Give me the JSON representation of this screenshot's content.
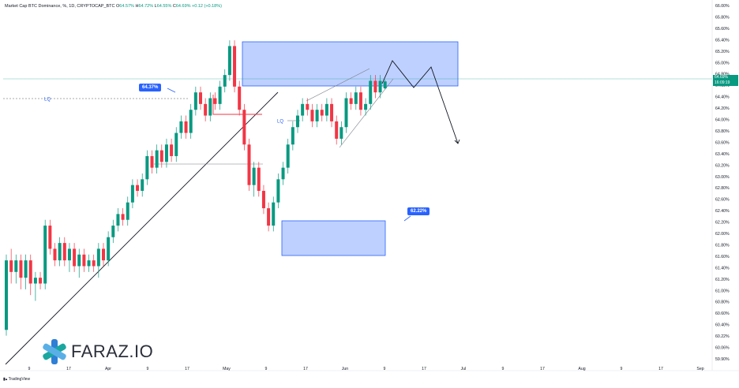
{
  "header": {
    "title": "Market Cap BTC Dominance, %, 1D, CRYPTOCAP_BTC",
    "ohlc": [
      {
        "k": "O",
        "v": "64.57%"
      },
      {
        "k": "H",
        "v": "64.72%"
      },
      {
        "k": "L",
        "v": "64.55%"
      },
      {
        "k": "C",
        "v": "64.69%"
      },
      {
        "k": "",
        "v": "+0.12 (+0.18%)"
      }
    ]
  },
  "price_tag": {
    "value": "64.69%",
    "countdown": "16:09:19"
  },
  "annotations": {
    "lq_left": "LQ",
    "lq_mid": "LQ",
    "label_top": "64.37%",
    "label_bottom": "62.22%"
  },
  "brand": {
    "name": "FARAZ.IO",
    "credit": "TradingView"
  },
  "colors": {
    "up": "#089981",
    "down": "#f23645",
    "zone": "#2962ff",
    "price_line": "#089981"
  },
  "chart_data": {
    "type": "candlestick",
    "ylim": [
      59.9,
      66.0
    ],
    "y_ticks": [
      "66.00%",
      "65.80%",
      "65.60%",
      "65.40%",
      "65.20%",
      "65.00%",
      "64.80%",
      "64.60%",
      "64.40%",
      "64.20%",
      "64.00%",
      "63.80%",
      "63.60%",
      "63.40%",
      "63.20%",
      "63.00%",
      "62.80%",
      "62.60%",
      "62.40%",
      "62.20%",
      "62.00%",
      "61.80%",
      "61.60%",
      "61.40%",
      "61.20%",
      "61.00%",
      "60.80%",
      "60.60%",
      "60.40%",
      "60.22%",
      "60.06%",
      "59.90%"
    ],
    "x_ticks": [
      "9",
      "17",
      "Apr",
      "9",
      "17",
      "May",
      "9",
      "17",
      "Jun",
      "9",
      "17",
      "Jul",
      "9",
      "17",
      "Aug",
      "9",
      "17",
      "Sep"
    ],
    "candles": [
      [
        60.4,
        61.6,
        60.3,
        61.7
      ],
      [
        61.6,
        61.4,
        61.2,
        61.8
      ],
      [
        61.4,
        61.6,
        61.2,
        61.7
      ],
      [
        61.6,
        61.3,
        61.1,
        61.7
      ],
      [
        61.3,
        61.6,
        61.1,
        61.7
      ],
      [
        61.6,
        61.2,
        61.0,
        61.7
      ],
      [
        61.2,
        61.3,
        60.9,
        61.4
      ],
      [
        61.3,
        61.2,
        61.1,
        61.4
      ],
      [
        61.2,
        62.2,
        61.1,
        62.3
      ],
      [
        62.2,
        61.8,
        61.7,
        62.3
      ],
      [
        61.8,
        61.6,
        61.5,
        61.9
      ],
      [
        61.6,
        61.9,
        61.5,
        62.0
      ],
      [
        61.9,
        61.6,
        61.5,
        62.0
      ],
      [
        61.6,
        61.8,
        61.4,
        61.9
      ],
      [
        61.8,
        61.5,
        61.4,
        61.9
      ],
      [
        61.5,
        61.7,
        61.3,
        61.8
      ],
      [
        61.7,
        61.5,
        61.4,
        61.8
      ],
      [
        61.5,
        61.6,
        61.4,
        61.7
      ],
      [
        61.6,
        61.5,
        61.4,
        61.7
      ],
      [
        61.5,
        61.8,
        61.3,
        61.9
      ],
      [
        61.8,
        61.6,
        61.5,
        61.9
      ],
      [
        61.6,
        62.0,
        61.5,
        62.1
      ],
      [
        62.0,
        62.2,
        61.9,
        62.3
      ],
      [
        62.2,
        62.4,
        62.1,
        62.5
      ],
      [
        62.4,
        62.3,
        62.2,
        62.5
      ],
      [
        62.3,
        62.6,
        62.2,
        62.7
      ],
      [
        62.6,
        62.9,
        62.5,
        63.0
      ],
      [
        62.9,
        62.8,
        62.7,
        63.0
      ],
      [
        62.8,
        63.0,
        62.7,
        63.1
      ],
      [
        63.0,
        63.4,
        62.9,
        63.5
      ],
      [
        63.4,
        63.2,
        63.1,
        63.5
      ],
      [
        63.2,
        63.5,
        63.1,
        63.6
      ],
      [
        63.5,
        63.3,
        63.2,
        63.6
      ],
      [
        63.3,
        63.6,
        63.2,
        63.7
      ],
      [
        63.6,
        63.4,
        63.3,
        63.7
      ],
      [
        63.4,
        63.8,
        63.3,
        63.9
      ],
      [
        63.8,
        64.0,
        63.7,
        64.1
      ],
      [
        64.0,
        63.8,
        63.7,
        64.1
      ],
      [
        63.8,
        64.2,
        63.7,
        64.3
      ],
      [
        64.2,
        64.5,
        64.1,
        64.6
      ],
      [
        64.5,
        64.3,
        64.2,
        64.6
      ],
      [
        64.3,
        64.1,
        64.0,
        64.4
      ],
      [
        64.1,
        64.4,
        64.0,
        64.5
      ],
      [
        64.4,
        64.3,
        64.2,
        64.5
      ],
      [
        64.3,
        64.6,
        64.2,
        64.7
      ],
      [
        64.6,
        64.8,
        64.5,
        64.9
      ],
      [
        64.8,
        65.3,
        64.7,
        65.4
      ],
      [
        65.3,
        64.6,
        64.5,
        65.4
      ],
      [
        64.6,
        64.2,
        64.1,
        64.7
      ],
      [
        64.2,
        63.6,
        63.5,
        64.3
      ],
      [
        63.6,
        62.9,
        62.8,
        63.7
      ],
      [
        62.9,
        63.2,
        62.7,
        63.3
      ],
      [
        63.2,
        62.8,
        62.7,
        63.3
      ],
      [
        62.8,
        62.5,
        62.4,
        62.9
      ],
      [
        62.5,
        62.2,
        62.1,
        62.6
      ],
      [
        62.2,
        62.6,
        62.1,
        62.7
      ],
      [
        62.6,
        63.0,
        62.5,
        63.1
      ],
      [
        63.0,
        63.2,
        62.9,
        63.3
      ],
      [
        63.2,
        63.6,
        63.1,
        63.7
      ],
      [
        63.6,
        63.9,
        63.5,
        64.0
      ],
      [
        63.9,
        64.1,
        63.8,
        64.2
      ],
      [
        64.1,
        64.3,
        64.0,
        64.4
      ],
      [
        64.3,
        64.2,
        64.1,
        64.4
      ],
      [
        64.2,
        64.0,
        63.9,
        64.3
      ],
      [
        64.0,
        64.2,
        63.9,
        64.3
      ],
      [
        64.2,
        64.1,
        64.0,
        64.3
      ],
      [
        64.1,
        64.3,
        64.0,
        64.4
      ],
      [
        64.3,
        64.0,
        63.9,
        64.4
      ],
      [
        64.0,
        63.7,
        63.6,
        64.1
      ],
      [
        63.7,
        63.9,
        63.6,
        64.0
      ],
      [
        63.9,
        64.4,
        63.8,
        64.5
      ],
      [
        64.4,
        64.3,
        64.2,
        64.5
      ],
      [
        64.3,
        64.5,
        64.2,
        64.6
      ],
      [
        64.5,
        64.2,
        64.1,
        64.6
      ],
      [
        64.2,
        64.3,
        64.1,
        64.4
      ],
      [
        64.3,
        64.7,
        64.2,
        64.8
      ],
      [
        64.7,
        64.5,
        64.4,
        64.8
      ],
      [
        64.5,
        64.7,
        64.4,
        64.8
      ],
      [
        64.57,
        64.69,
        64.55,
        64.72
      ]
    ]
  }
}
